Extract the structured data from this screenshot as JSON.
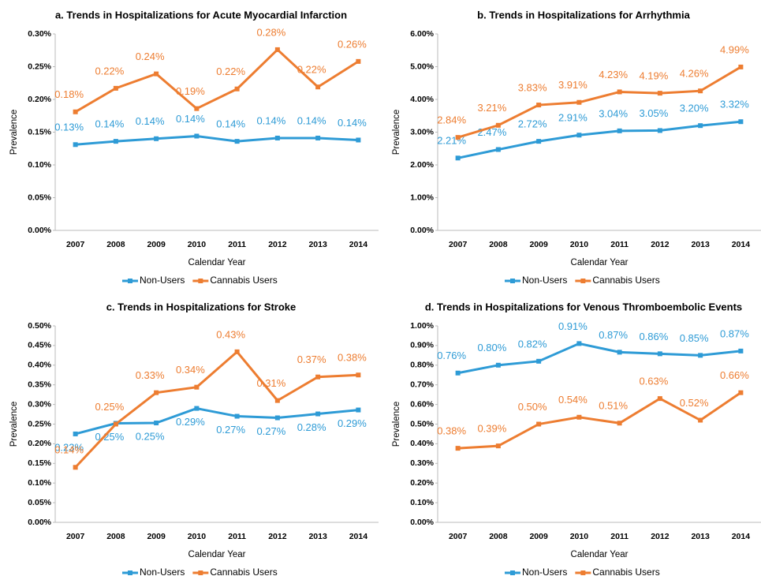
{
  "chart_data": [
    {
      "type": "line",
      "title": "a. Trends in Hospitalizations for Acute Myocardial Infarction",
      "x_label": "Calendar Year",
      "y_label": "Prevalence",
      "categories": [
        "2007",
        "2008",
        "2009",
        "2010",
        "2011",
        "2012",
        "2013",
        "2014"
      ],
      "ylim": [
        0,
        0.3
      ],
      "yticks": [
        {
          "value": 0,
          "label": "0.00%"
        },
        {
          "value": 0.05,
          "label": "0.05%"
        },
        {
          "value": 0.1,
          "label": "0.10%"
        },
        {
          "value": 0.15,
          "label": "0.15%"
        },
        {
          "value": 0.2,
          "label": "0.20%"
        },
        {
          "value": 0.25,
          "label": "0.25%"
        },
        {
          "value": 0.3,
          "label": "0.30%"
        }
      ],
      "series": [
        {
          "name": "Non-Users",
          "color": "#2e9bd6",
          "values": [
            0.131,
            0.136,
            0.14,
            0.144,
            0.136,
            0.141,
            0.141,
            0.138
          ],
          "value_labels": [
            "0.13%",
            "0.14%",
            "0.14%",
            "0.14%",
            "0.14%",
            "0.14%",
            "0.14%",
            "0.14%"
          ]
        },
        {
          "name": "Cannabis Users",
          "color": "#ed7d31",
          "values": [
            0.181,
            0.217,
            0.239,
            0.186,
            0.216,
            0.276,
            0.219,
            0.258
          ],
          "value_labels": [
            "0.18%",
            "0.22%",
            "0.24%",
            "0.19%",
            "0.22%",
            "0.28%",
            "0.22%",
            "0.26%"
          ]
        }
      ]
    },
    {
      "type": "line",
      "title": "b. Trends in Hospitalizations for Arrhythmia",
      "x_label": "Calendar Year",
      "y_label": "Prevalence",
      "categories": [
        "2007",
        "2008",
        "2009",
        "2010",
        "2011",
        "2012",
        "2013",
        "2014"
      ],
      "ylim": [
        0,
        6
      ],
      "yticks": [
        {
          "value": 0,
          "label": "0.00%"
        },
        {
          "value": 1,
          "label": "1.00%"
        },
        {
          "value": 2,
          "label": "2.00%"
        },
        {
          "value": 3,
          "label": "3.00%"
        },
        {
          "value": 4,
          "label": "4.00%"
        },
        {
          "value": 5,
          "label": "5.00%"
        },
        {
          "value": 6,
          "label": "6.00%"
        }
      ],
      "series": [
        {
          "name": "Non-Users",
          "color": "#2e9bd6",
          "values": [
            2.21,
            2.47,
            2.72,
            2.91,
            3.04,
            3.05,
            3.2,
            3.32
          ],
          "value_labels": [
            "2.21%",
            "2.47%",
            "2.72%",
            "2.91%",
            "3.04%",
            "3.05%",
            "3.20%",
            "3.32%"
          ]
        },
        {
          "name": "Cannabis Users",
          "color": "#ed7d31",
          "values": [
            2.84,
            3.21,
            3.83,
            3.91,
            4.23,
            4.19,
            4.26,
            4.99
          ],
          "value_labels": [
            "2.84%",
            "3.21%",
            "3.83%",
            "3.91%",
            "4.23%",
            "4.19%",
            "4.26%",
            "4.99%"
          ]
        }
      ]
    },
    {
      "type": "line",
      "title": "c. Trends in Hospitalizations for Stroke",
      "x_label": "Calendar Year",
      "y_label": "Prevalence",
      "categories": [
        "2007",
        "2008",
        "2009",
        "2010",
        "2011",
        "2012",
        "2013",
        "2014"
      ],
      "ylim": [
        0,
        0.5
      ],
      "yticks": [
        {
          "value": 0,
          "label": "0.00%"
        },
        {
          "value": 0.05,
          "label": "0.05%"
        },
        {
          "value": 0.1,
          "label": "0.10%"
        },
        {
          "value": 0.15,
          "label": "0.15%"
        },
        {
          "value": 0.2,
          "label": "0.20%"
        },
        {
          "value": 0.25,
          "label": "0.25%"
        },
        {
          "value": 0.3,
          "label": "0.30%"
        },
        {
          "value": 0.35,
          "label": "0.35%"
        },
        {
          "value": 0.4,
          "label": "0.40%"
        },
        {
          "value": 0.45,
          "label": "0.45%"
        },
        {
          "value": 0.5,
          "label": "0.50%"
        }
      ],
      "series": [
        {
          "name": "Non-Users",
          "color": "#2e9bd6",
          "values": [
            0.225,
            0.252,
            0.253,
            0.29,
            0.27,
            0.266,
            0.276,
            0.286
          ],
          "value_labels": [
            "0.23%",
            "0.25%",
            "0.25%",
            "0.29%",
            "0.27%",
            "0.27%",
            "0.28%",
            "0.29%"
          ]
        },
        {
          "name": "Cannabis Users",
          "color": "#ed7d31",
          "values": [
            0.14,
            0.25,
            0.33,
            0.344,
            0.434,
            0.31,
            0.37,
            0.375
          ],
          "value_labels": [
            "0.14%",
            "0.25%",
            "0.33%",
            "0.34%",
            "0.43%",
            "0.31%",
            "0.37%",
            "0.38%"
          ]
        }
      ]
    },
    {
      "type": "line",
      "title": "d. Trends in Hospitalizations for Venous Thromboembolic Events",
      "x_label": "Calendar Year",
      "y_label": "Prevalence",
      "categories": [
        "2007",
        "2008",
        "2009",
        "2010",
        "2011",
        "2012",
        "2013",
        "2014"
      ],
      "ylim": [
        0,
        1
      ],
      "yticks": [
        {
          "value": 0,
          "label": "0.00%"
        },
        {
          "value": 0.1,
          "label": "0.10%"
        },
        {
          "value": 0.2,
          "label": "0.20%"
        },
        {
          "value": 0.3,
          "label": "0.30%"
        },
        {
          "value": 0.4,
          "label": "0.40%"
        },
        {
          "value": 0.5,
          "label": "0.50%"
        },
        {
          "value": 0.6,
          "label": "0.60%"
        },
        {
          "value": 0.7,
          "label": "0.70%"
        },
        {
          "value": 0.8,
          "label": "0.80%"
        },
        {
          "value": 0.9,
          "label": "0.90%"
        },
        {
          "value": 1,
          "label": "1.00%"
        }
      ],
      "series": [
        {
          "name": "Non-Users",
          "color": "#2e9bd6",
          "values": [
            0.76,
            0.8,
            0.82,
            0.91,
            0.866,
            0.858,
            0.85,
            0.872
          ],
          "value_labels": [
            "0.76%",
            "0.80%",
            "0.82%",
            "0.91%",
            "0.87%",
            "0.86%",
            "0.85%",
            "0.87%"
          ]
        },
        {
          "name": "Cannabis Users",
          "color": "#ed7d31",
          "values": [
            0.377,
            0.389,
            0.5,
            0.535,
            0.505,
            0.63,
            0.52,
            0.66
          ],
          "value_labels": [
            "0.38%",
            "0.39%",
            "0.50%",
            "0.54%",
            "0.51%",
            "0.63%",
            "0.52%",
            "0.66%"
          ]
        }
      ]
    }
  ]
}
